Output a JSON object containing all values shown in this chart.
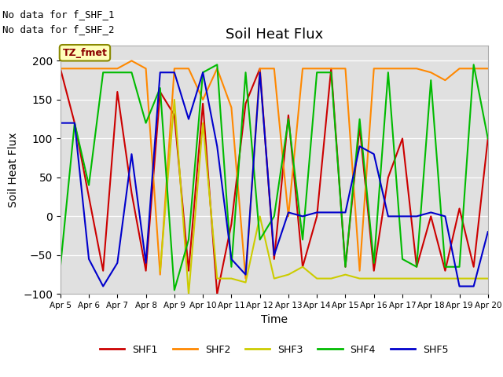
{
  "title": "Soil Heat Flux",
  "ylabel": "Soil Heat Flux",
  "xlabel": "Time",
  "ylim": [
    -100,
    220
  ],
  "yticks": [
    -100,
    -50,
    0,
    50,
    100,
    150,
    200
  ],
  "text_no_data": [
    "No data for f_SHF_1",
    "No data for f_SHF_2"
  ],
  "legend_label": "TZ_fmet",
  "series_labels": [
    "SHF1",
    "SHF2",
    "SHF3",
    "SHF4",
    "SHF5"
  ],
  "series_colors": [
    "#cc0000",
    "#ff8800",
    "#cccc00",
    "#00bb00",
    "#0000cc"
  ],
  "background_color": "#e0e0e0",
  "xtick_labels": [
    "Apr 5",
    "Apr 6",
    "Apr 7",
    "Apr 8",
    "Apr 9",
    "Apr 10",
    "Apr 11",
    "Apr 12",
    "Apr 13",
    "Apr 14",
    "Apr 15",
    "Apr 16",
    "Apr 17",
    "Apr 18",
    "Apr 19",
    "Apr 20"
  ],
  "SHF1": [
    190,
    120,
    25,
    -70,
    160,
    30,
    -70,
    160,
    130,
    -70,
    145,
    -100,
    -10,
    145,
    190,
    -55,
    130,
    -65,
    0,
    190,
    -65,
    115,
    -70,
    50,
    100,
    -65,
    0,
    -70,
    10,
    -65,
    100
  ],
  "SHF2": [
    190,
    190,
    190,
    190,
    190,
    200,
    190,
    -75,
    190,
    190,
    150,
    190,
    140,
    -80,
    190,
    190,
    0,
    190,
    190,
    190,
    190,
    -70,
    190,
    190,
    190,
    190,
    185,
    175,
    190,
    190,
    190
  ],
  "SHF3": [
    null,
    null,
    null,
    null,
    null,
    null,
    null,
    -70,
    150,
    -100,
    120,
    -80,
    -80,
    -85,
    0,
    -80,
    -75,
    -65,
    -80,
    -80,
    -75,
    -80,
    -80,
    -80,
    -80,
    -80,
    -80,
    -80,
    -80,
    -80,
    -80
  ],
  "SHF4": [
    -65,
    120,
    40,
    185,
    185,
    185,
    120,
    165,
    -95,
    -30,
    185,
    195,
    -65,
    185,
    -30,
    0,
    125,
    -30,
    185,
    185,
    -65,
    125,
    -60,
    185,
    -55,
    -65,
    175,
    -65,
    -65,
    195,
    100
  ],
  "SHF5": [
    120,
    120,
    -55,
    -90,
    -60,
    80,
    -60,
    185,
    185,
    125,
    185,
    90,
    -55,
    -75,
    185,
    -50,
    5,
    0,
    5,
    5,
    5,
    90,
    80,
    0,
    0,
    0,
    5,
    0,
    -90,
    -90,
    -20
  ],
  "num_points": 31,
  "xstart": 5,
  "xend": 20
}
